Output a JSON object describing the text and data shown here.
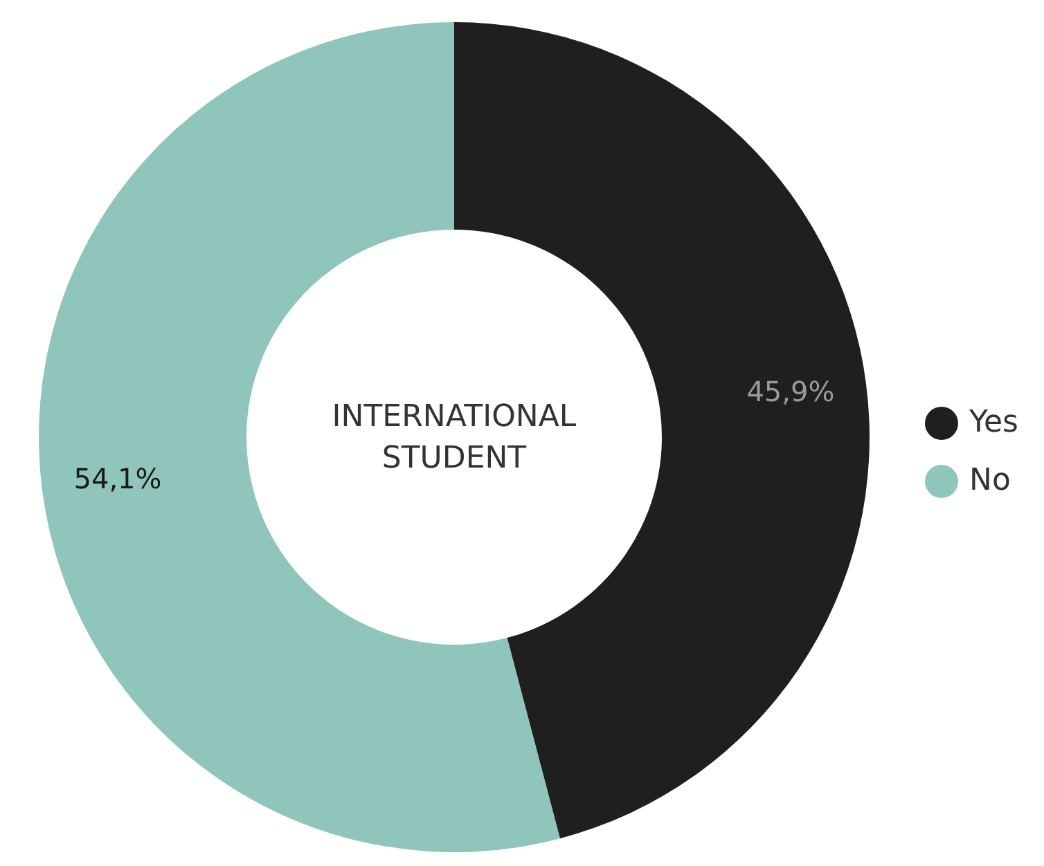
{
  "chart_data": {
    "type": "donut",
    "title": "INTERNATIONAL STUDENT",
    "categories": [
      "Yes",
      "No"
    ],
    "values": [
      45.9,
      54.1
    ],
    "value_labels": [
      "45,9%",
      "54,1%"
    ],
    "colors": [
      "#1f1f1f",
      "#8fc5ba"
    ],
    "legend": "right"
  }
}
